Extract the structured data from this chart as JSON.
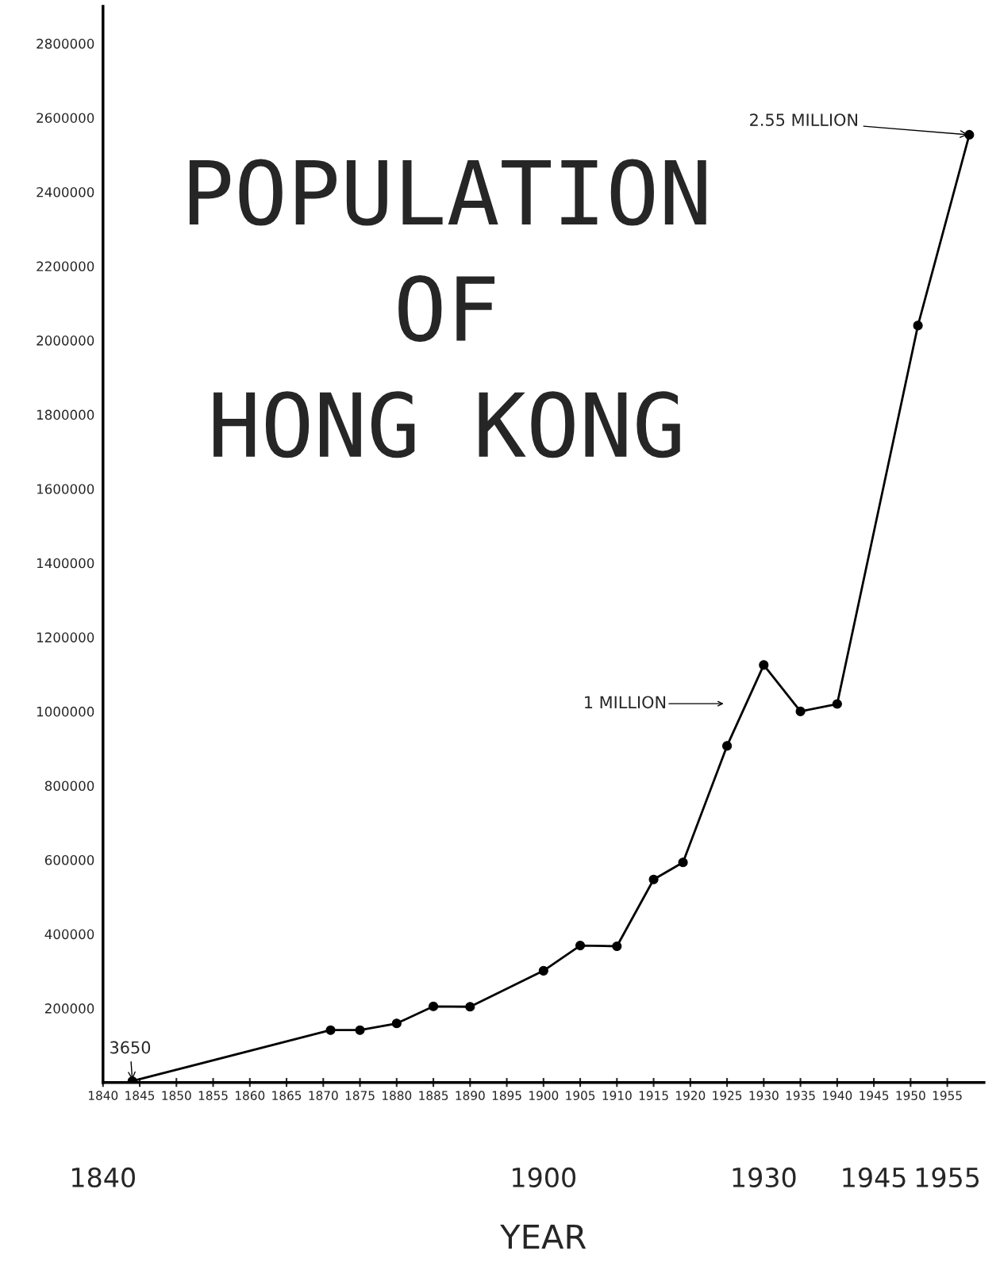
{
  "chart_data": {
    "type": "line",
    "title": "POPULATION\nOF\nHONG KONG",
    "xlabel": "YEAR",
    "x": [
      1844,
      1871,
      1875,
      1880,
      1885,
      1890,
      1900,
      1905,
      1910,
      1915,
      1919,
      1925,
      1930,
      1935,
      1940,
      1951,
      1958
    ],
    "series": [
      {
        "color": "#000000",
        "values": [
          3650,
          141000,
          141000,
          159000,
          205000,
          204000,
          301000,
          369000,
          367000,
          547000,
          593000,
          907000,
          1125000,
          1000000,
          1020000,
          2040000,
          2554000
        ]
      }
    ],
    "xlim": [
      1840,
      1960
    ],
    "xticks": [
      1840,
      1845,
      1850,
      1855,
      1860,
      1865,
      1870,
      1875,
      1880,
      1885,
      1890,
      1895,
      1900,
      1905,
      1910,
      1915,
      1920,
      1925,
      1930,
      1935,
      1940,
      1945,
      1950,
      1955
    ],
    "x2lim": [
      1840,
      1960
    ],
    "x2ticks": [
      1840,
      1900,
      1930,
      1945,
      1955
    ],
    "ylim": [
      0,
      2900000
    ],
    "yticks": [
      200000,
      400000,
      600000,
      800000,
      1000000,
      1200000,
      1400000,
      1600000,
      1800000,
      2000000,
      2200000,
      2400000,
      2600000,
      2800000
    ],
    "annotations": [
      {
        "text": "3650",
        "x": 1844,
        "y": 3650
      },
      "1 MILLION",
      {
        "text": "2.55 MILLION",
        "x": 1958,
        "y": 2554000
      }
    ],
    "marker": "circle",
    "line_style": "solid",
    "grid": false,
    "legend": false
  }
}
